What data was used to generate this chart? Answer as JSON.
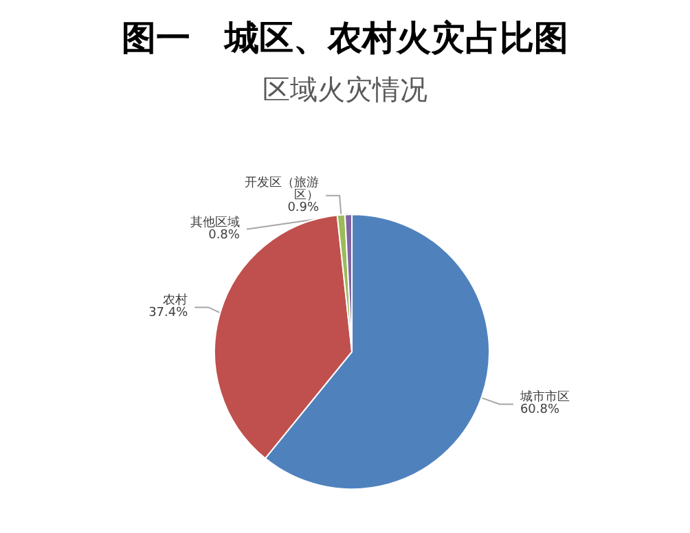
{
  "chart_data": {
    "type": "pie",
    "title": "图一　城区、农村火灾占比图",
    "subtitle": "区域火灾情况",
    "categories": [
      "城市市区",
      "农村",
      "开发区（旅游区）",
      "其他区域"
    ],
    "values": [
      60.8,
      37.4,
      0.9,
      0.8
    ],
    "colors": [
      "#4f81bd",
      "#c0504d",
      "#9bbb59",
      "#8064a2"
    ],
    "value_labels": [
      "60.8%",
      "37.4%",
      "0.9%",
      "0.8%"
    ],
    "legend": false
  }
}
